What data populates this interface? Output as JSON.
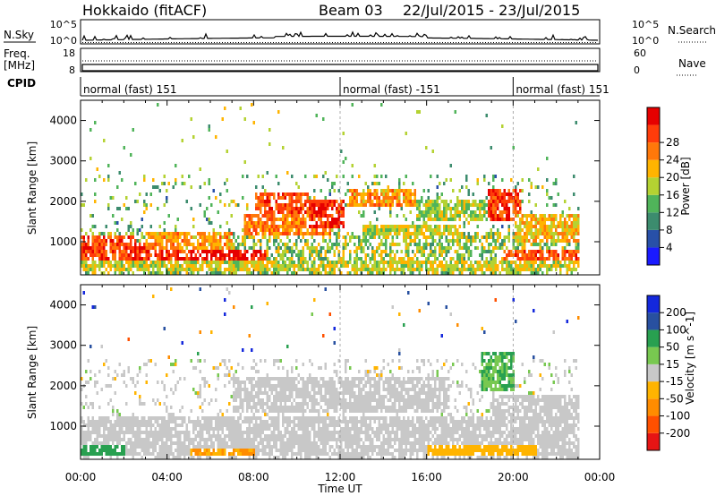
{
  "header": {
    "station": "Hokkaido (fitACF)",
    "beam": "Beam 03",
    "date_range": "22/Jul/2015 - 23/Jul/2015"
  },
  "nsky_panel": {
    "label": "N.Sky",
    "right_label": "N.Search",
    "left_ticks": [
      "10^5",
      "10^0"
    ],
    "right_ticks": [
      "10^5",
      "10^0"
    ]
  },
  "freq_panel": {
    "label_line1": "Freq.",
    "label_line2": "[MHz]",
    "left_ticks": [
      "18",
      "8"
    ],
    "right_label": "Nave",
    "right_ticks": [
      "60",
      "0"
    ]
  },
  "cpid_panel": {
    "label": "CPID",
    "segments": [
      {
        "text": "normal (fast) 151",
        "start_hour": 0
      },
      {
        "text": "normal (fast) -151",
        "start_hour": 12
      },
      {
        "text": "normal (fast) 151",
        "start_hour": 20
      }
    ]
  },
  "power_panel": {
    "ylabel": "Slant Range [km]",
    "yticks": [
      1000,
      2000,
      3000,
      4000
    ],
    "colorbar_label": "Power [dB]",
    "colorbar_ticks": [
      "4",
      "8",
      "12",
      "16",
      "20",
      "24",
      "28"
    ],
    "colors": [
      "#1a1aff",
      "#2850a8",
      "#3c8c6e",
      "#50b45a",
      "#b4d232",
      "#ffb400",
      "#ff780a",
      "#ff3c0a",
      "#e60000"
    ]
  },
  "velocity_panel": {
    "ylabel": "Slant Range [km]",
    "yticks": [
      1000,
      2000,
      3000,
      4000
    ],
    "colorbar_label": "Velocity [m s^-1]",
    "colorbar_ticks": [
      "200",
      "100",
      "50",
      "15",
      "-15",
      "-50",
      "-100",
      "-200"
    ],
    "colors": [
      "#1428dc",
      "#2850a0",
      "#28a050",
      "#78c850",
      "#c8c8c8",
      "#ffb400",
      "#ff8c00",
      "#ff5000",
      "#e61414"
    ]
  },
  "xaxis": {
    "label": "Time UT",
    "ticks": [
      "00:00",
      "04:00",
      "08:00",
      "12:00",
      "16:00",
      "20:00",
      "00:00"
    ]
  },
  "chart_data": {
    "type": "heatmap",
    "x_range_hours": [
      0,
      24
    ],
    "y_range_km": [
      180,
      4500
    ],
    "data_end_hour": 23.0,
    "power_patches_db": [
      {
        "t0": 0.0,
        "t1": 2.5,
        "r0": 450,
        "r1": 1100,
        "value": 26
      },
      {
        "t0": 2.0,
        "t1": 5.2,
        "r0": 350,
        "r1": 950,
        "value": 28
      },
      {
        "t0": 5.0,
        "t1": 8.5,
        "r0": 300,
        "r1": 800,
        "value": 30
      },
      {
        "t0": 3.0,
        "t1": 7.0,
        "r0": 800,
        "r1": 1200,
        "value": 22
      },
      {
        "t0": 7.5,
        "t1": 11.5,
        "r0": 1100,
        "r1": 1600,
        "value": 24
      },
      {
        "t0": 8.0,
        "t1": 10.5,
        "r0": 1600,
        "r1": 2200,
        "value": 26
      },
      {
        "t0": 10.5,
        "t1": 12.2,
        "r0": 1300,
        "r1": 2000,
        "value": 28
      },
      {
        "t0": 12.4,
        "t1": 15.5,
        "r0": 1800,
        "r1": 2300,
        "value": 22
      },
      {
        "t0": 13.0,
        "t1": 17.5,
        "r0": 1100,
        "r1": 1400,
        "value": 18
      },
      {
        "t0": 15.5,
        "t1": 19.0,
        "r0": 1500,
        "r1": 2000,
        "value": 16
      },
      {
        "t0": 18.8,
        "t1": 20.3,
        "r0": 1500,
        "r1": 2300,
        "value": 27
      },
      {
        "t0": 20.0,
        "t1": 23.0,
        "r0": 900,
        "r1": 1600,
        "value": 20
      },
      {
        "t0": 19.5,
        "t1": 23.0,
        "r0": 250,
        "r1": 800,
        "value": 26
      },
      {
        "t0": 0.0,
        "t1": 23.0,
        "r0": 200,
        "r1": 450,
        "value": 18
      }
    ],
    "velocity_patches_ms": [
      {
        "t0": 0.0,
        "t1": 23.0,
        "r0": 200,
        "r1": 1200,
        "value": 0
      },
      {
        "t0": 0.0,
        "t1": 2.0,
        "r0": 200,
        "r1": 500,
        "value": 40
      },
      {
        "t0": 5.0,
        "t1": 8.0,
        "r0": 200,
        "r1": 400,
        "value": -40
      },
      {
        "t0": 7.0,
        "t1": 17.0,
        "r0": 1300,
        "r1": 2200,
        "value": -5
      },
      {
        "t0": 18.5,
        "t1": 20.0,
        "r0": 1800,
        "r1": 2800,
        "value": 30
      },
      {
        "t0": 16.0,
        "t1": 21.0,
        "r0": 200,
        "r1": 500,
        "value": -30
      },
      {
        "t0": 19.0,
        "t1": 23.0,
        "r0": 1000,
        "r1": 1700,
        "value": 5
      }
    ]
  }
}
